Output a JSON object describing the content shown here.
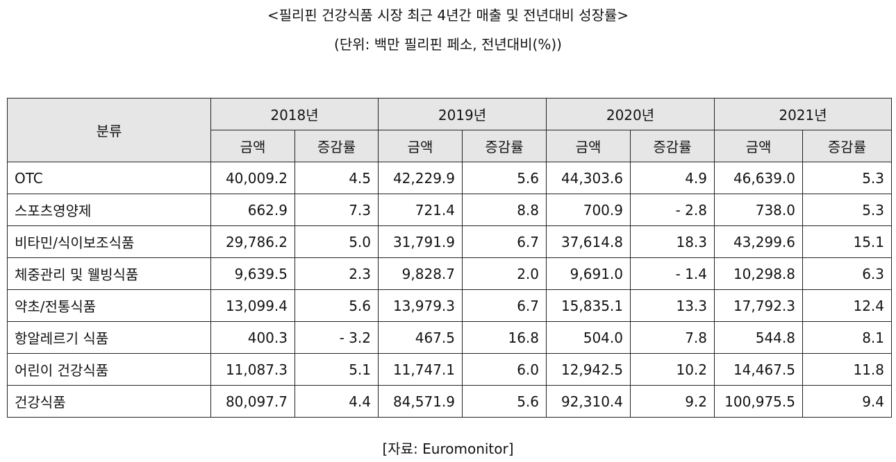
{
  "title": "<필리핀 건강식품 시장 최근 4년간 매출 및 전년대비 성장률>",
  "subtitle": "(단위: 백만 필리핀 페소, 전년대비(%))",
  "table": {
    "category_header": "분류",
    "years": [
      "2018년",
      "2019년",
      "2020년",
      "2021년"
    ],
    "amount_label": "금액",
    "change_label": "증감률",
    "rows": [
      {
        "category": "OTC",
        "cells": [
          "40,009.2",
          "4.5",
          "42,229.9",
          "5.6",
          "44,303.6",
          "4.9",
          "46,639.0",
          "5.3"
        ]
      },
      {
        "category": "스포츠영양제",
        "cells": [
          "662.9",
          "7.3",
          "721.4",
          "8.8",
          "700.9",
          "- 2.8",
          "738.0",
          "5.3"
        ]
      },
      {
        "category": "비타민/식이보조식품",
        "cells": [
          "29,786.2",
          "5.0",
          "31,791.9",
          "6.7",
          "37,614.8",
          "18.3",
          "43,299.6",
          "15.1"
        ]
      },
      {
        "category": "체중관리 및 웰빙식품",
        "cells": [
          "9,639.5",
          "2.3",
          "9,828.7",
          "2.0",
          "9,691.0",
          "- 1.4",
          "10,298.8",
          "6.3"
        ]
      },
      {
        "category": "약초/전통식품",
        "cells": [
          "13,099.4",
          "5.6",
          "13,979.3",
          "6.7",
          "15,835.1",
          "13.3",
          "17,792.3",
          "12.4"
        ]
      },
      {
        "category": "항알레르기 식품",
        "cells": [
          "400.3",
          "- 3.2",
          "467.5",
          "16.8",
          "504.0",
          "7.8",
          "544.8",
          "8.1"
        ]
      },
      {
        "category": "어린이 건강식품",
        "cells": [
          "11,087.3",
          "5.1",
          "11,747.1",
          "6.0",
          "12,942.5",
          "10.2",
          "14,467.5",
          "11.8"
        ]
      },
      {
        "category": "건강식품",
        "cells": [
          "80,097.7",
          "4.4",
          "84,571.9",
          "5.6",
          "92,310.4",
          "9.2",
          "100,975.5",
          "9.4"
        ]
      }
    ]
  },
  "source": "[자료: Euromonitor]"
}
